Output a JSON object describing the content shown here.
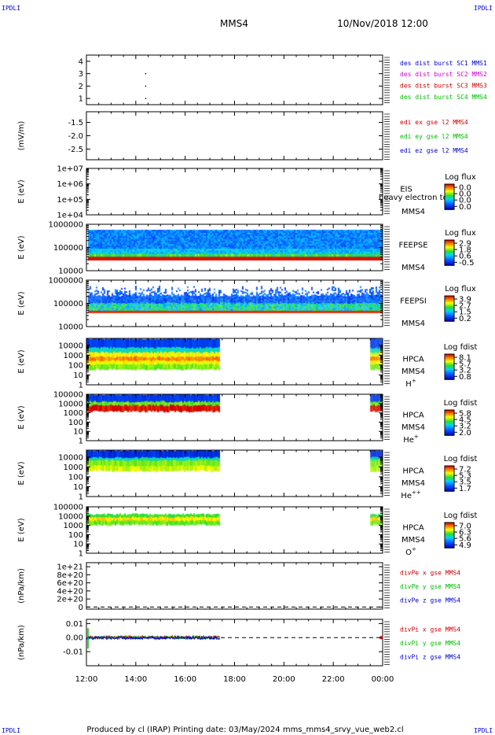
{
  "header": {
    "corner_tl": "IPDLI",
    "corner_tr": "IPDLI",
    "corner_bl": "IPDLI",
    "corner_br": "IPDLI",
    "mission": "MMS4",
    "datetime": "10/Nov/2018 12:00",
    "footer": "Produced by cl (IRAP)   Printing date: 03/May/2024   mms_mms4_srvy_vue_web2.cl"
  },
  "chart_data": {
    "type": "multi-panel",
    "x_ticks": [
      "12:00",
      "14:00",
      "16:00",
      "18:00",
      "20:00",
      "22:00",
      "00:00"
    ],
    "x_range_hours": [
      12,
      24
    ],
    "panels": [
      {
        "id": "des",
        "ylabel": "",
        "yticks": [
          "4",
          "3",
          "2",
          "1"
        ],
        "ylim": [
          0.5,
          4.5
        ],
        "legend": [
          {
            "text": "des dist burst SC1 MMS1",
            "color": "#0000cc"
          },
          {
            "text": "des dist burst SC2 MMS2",
            "color": "#cc00cc"
          },
          {
            "text": "des dist burst SC3 MMS3",
            "color": "#cc0000"
          },
          {
            "text": "des dist burst SC4 MMS4",
            "color": "#00bb00"
          }
        ],
        "points": [
          [
            14.4,
            3
          ],
          [
            14.4,
            2
          ],
          [
            14.4,
            1
          ]
        ]
      },
      {
        "id": "edi",
        "ylabel": "(mV/m)",
        "yticks": [
          "-1.5",
          "-2.0",
          "-2.5"
        ],
        "ylim": [
          -2.9,
          -1.1
        ],
        "legend": [
          {
            "text": "edi ex gse l2 MMS4",
            "color": "#cc0000"
          },
          {
            "text": "edi ey gse l2 MMS4",
            "color": "#00bb00"
          },
          {
            "text": "edi ez gse l2 MMS4",
            "color": "#0000cc"
          }
        ]
      },
      {
        "id": "eis",
        "ylabel": "E (eV)",
        "yticks": [
          "1e+07",
          "1e+06",
          "1e+05",
          "1e+04"
        ],
        "log": true,
        "ylim": [
          10000,
          10000000
        ],
        "inst": "EIS",
        "sc": "MMS4",
        "note": "heavy electron to",
        "cb_title": "Log flux",
        "cb_ticks": [
          "0.0",
          "0.0",
          "0.0",
          "0.0"
        ],
        "spectrogram": "none"
      },
      {
        "id": "feepse",
        "ylabel": "E (eV)",
        "yticks": [
          "1000000",
          "100000",
          "10000"
        ],
        "log": true,
        "ylim": [
          10000,
          1000000
        ],
        "inst": "FEEPSE",
        "sc": "MMS4",
        "cb_title": "Log flux",
        "cb_ticks": [
          "2.9",
          "1.8",
          "0.6",
          "-0.5"
        ],
        "spectrogram": "feepse",
        "coverage_hours": [
          12,
          24
        ]
      },
      {
        "id": "feepsi",
        "ylabel": "E (eV)",
        "yticks": [
          "1000000",
          "100000",
          "10000"
        ],
        "log": true,
        "ylim": [
          10000,
          1000000
        ],
        "inst": "FEEPSI",
        "sc": "MMS4",
        "cb_title": "Log flux",
        "cb_ticks": [
          "3.9",
          "2.7",
          "1.5",
          "0.2"
        ],
        "spectrogram": "feepsi",
        "coverage_hours": [
          12,
          24
        ]
      },
      {
        "id": "hpca_h",
        "ylabel": "E (eV)",
        "yticks": [
          "10000",
          "1000",
          "100",
          "10",
          "1"
        ],
        "log": true,
        "ylim": [
          1,
          50000
        ],
        "inst": "HPCA",
        "sc": "MMS4",
        "species": "H",
        "species_sup": "+",
        "cb_title": "Log fdist",
        "cb_ticks": [
          "8.1",
          "5.7",
          "3.2",
          "0.8"
        ],
        "spectrogram": "hpca_h",
        "coverage_hours": [
          [
            12,
            17.4
          ],
          [
            23.5,
            24
          ]
        ]
      },
      {
        "id": "hpca_he",
        "ylabel": "E (eV)",
        "yticks": [
          "100000",
          "10000",
          "1000",
          "100",
          "10",
          "1"
        ],
        "log": true,
        "ylim": [
          1,
          100000
        ],
        "inst": "HPCA",
        "sc": "MMS4",
        "species": "He",
        "species_sup": "+",
        "cb_title": "Log fdist",
        "cb_ticks": [
          "5.8",
          "4.5",
          "3.2",
          "2.0"
        ],
        "spectrogram": "hpca_he",
        "coverage_hours": [
          [
            12,
            17.4
          ],
          [
            23.5,
            24
          ]
        ]
      },
      {
        "id": "hpca_hepp",
        "ylabel": "E (eV)",
        "yticks": [
          "10000",
          "1000",
          "100",
          "10",
          "1"
        ],
        "log": true,
        "ylim": [
          1,
          50000
        ],
        "inst": "HPCA",
        "sc": "MMS4",
        "species": "He",
        "species_sup": "++",
        "cb_title": "Log fdist",
        "cb_ticks": [
          "7.2",
          "5.3",
          "3.5",
          "1.7"
        ],
        "spectrogram": "hpca_hepp",
        "coverage_hours": [
          [
            12,
            17.4
          ],
          [
            23.5,
            24
          ]
        ]
      },
      {
        "id": "hpca_o",
        "ylabel": "E (eV)",
        "yticks": [
          "100000",
          "10000",
          "1000",
          "100",
          "10",
          "1"
        ],
        "log": true,
        "ylim": [
          1,
          100000
        ],
        "inst": "HPCA",
        "sc": "MMS4",
        "species": "O",
        "species_sup": "+",
        "cb_title": "Log fdist",
        "cb_ticks": [
          "7.0",
          "6.3",
          "5.6",
          "4.9"
        ],
        "spectrogram": "hpca_o",
        "coverage_hours": [
          [
            12,
            17.4
          ],
          [
            23.5,
            24
          ]
        ]
      },
      {
        "id": "divpe",
        "ylabel": "(nPa/km)",
        "yticks": [
          "1e+21",
          "8e+20",
          "6e+20",
          "4e+20",
          "2e+20",
          "0"
        ],
        "ylim": [
          -5e+19,
          1.1e+21
        ],
        "legend": [
          {
            "text": "divPe x gse MMS4",
            "color": "#cc0000"
          },
          {
            "text": "divPe y gse MMS4",
            "color": "#00bb00"
          },
          {
            "text": "divPe z gse MMS4",
            "color": "#0000cc"
          }
        ],
        "zero_line": true
      },
      {
        "id": "divpi",
        "ylabel": "(nPa/km)",
        "yticks": [
          "0.01",
          "0.00",
          "-0.01"
        ],
        "ylim": [
          -0.02,
          0.013
        ],
        "legend": [
          {
            "text": "divPi x gse MMS4",
            "color": "#cc0000"
          },
          {
            "text": "divPi y gse MMS4",
            "color": "#00bb00"
          },
          {
            "text": "divPi z gse MMS4",
            "color": "#0000cc"
          }
        ],
        "zero_line": true,
        "trace_hours": [
          12,
          17.4
        ]
      }
    ]
  }
}
